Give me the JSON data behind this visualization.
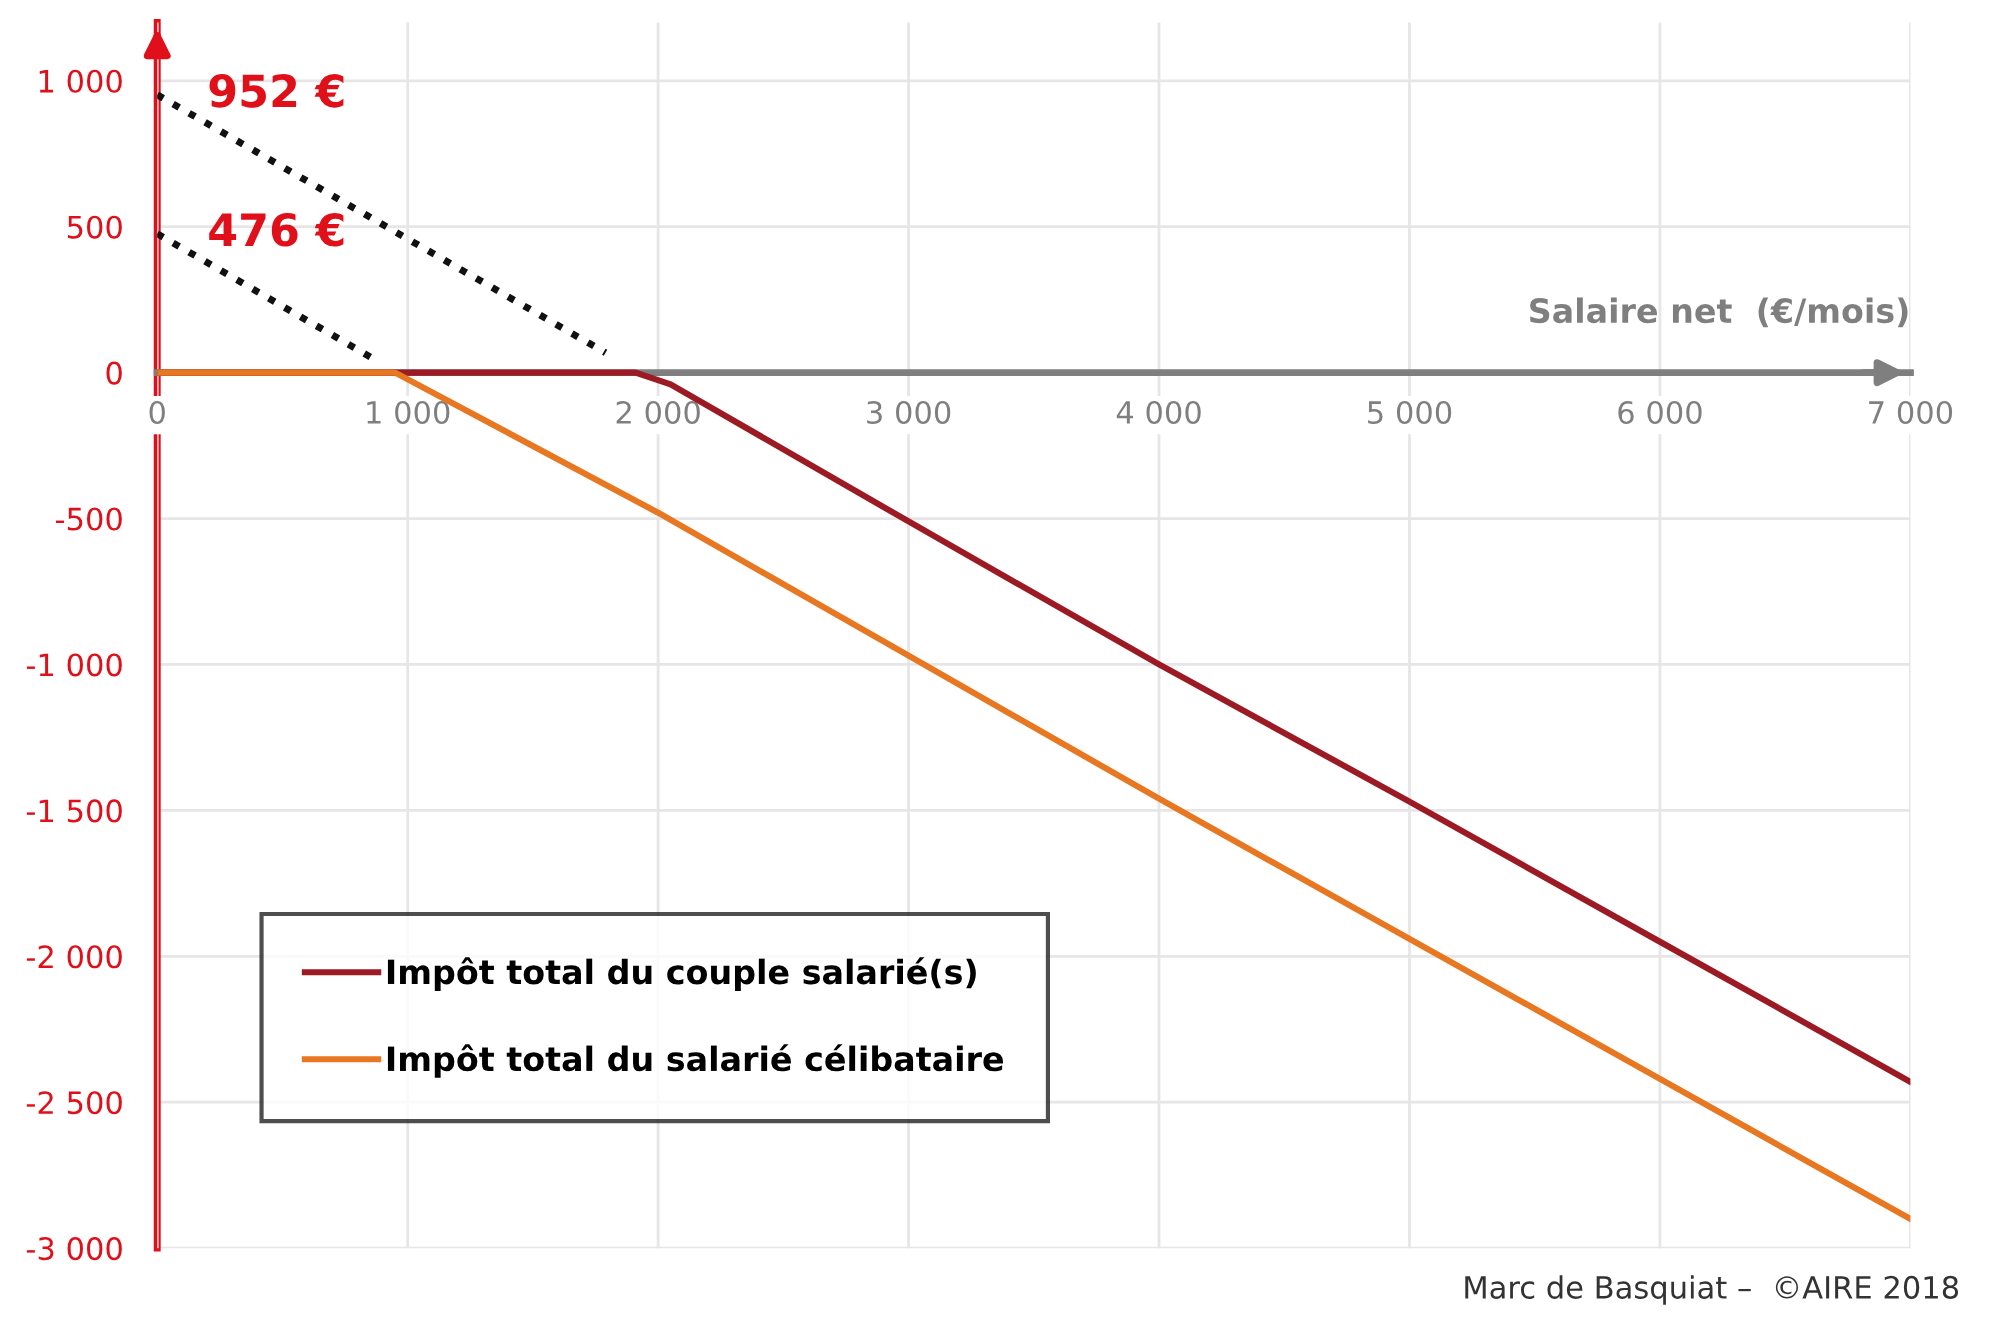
{
  "chart_data": {
    "type": "line",
    "xlabel": "Salaire net  (€/mois)",
    "xlim": [
      0,
      7000
    ],
    "ylim": [
      -3000,
      1200
    ],
    "xticks": [
      0,
      {
        "value": 1000,
        "label": "1 000"
      },
      {
        "value": 2000,
        "label": "2 000"
      },
      {
        "value": 3000,
        "label": "3 000"
      },
      {
        "value": 4000,
        "label": "4 000"
      },
      {
        "value": 5000,
        "label": "5 000"
      },
      {
        "value": 6000,
        "label": "6 000"
      },
      {
        "value": 7000,
        "label": "7 000"
      }
    ],
    "yticks": [
      {
        "value": 1000,
        "label": "1 000"
      },
      500,
      0,
      {
        "value": -500,
        "label": "-500"
      },
      {
        "value": -1000,
        "label": "-1 000"
      },
      {
        "value": -1500,
        "label": "-1 500"
      },
      {
        "value": -2000,
        "label": "-2 000"
      },
      {
        "value": -2500,
        "label": "-2 500"
      },
      {
        "value": -3000,
        "label": "-3 000"
      }
    ],
    "grid": true,
    "legend": "bottom left",
    "series": [
      {
        "name": "Impôt total du couple salarié(s)",
        "color": "#9c1a24",
        "x": [
          0,
          1910,
          2050,
          3000,
          4000,
          5000,
          6000,
          7000
        ],
        "values": [
          0,
          0,
          -40,
          -510,
          -1000,
          -1470,
          -1950,
          -2430
        ]
      },
      {
        "name": "Impôt total du salarié célibataire",
        "color": "#e87722",
        "x": [
          0,
          950,
          2000,
          3000,
          4000,
          5000,
          6000,
          7000
        ],
        "values": [
          0,
          0,
          -480,
          -970,
          -1460,
          -1940,
          -2420,
          -2900
        ]
      },
      {
        "color": "#111111",
        "line_style": "dotted",
        "x": [
          0,
          1790
        ],
        "values": [
          952,
          68
        ]
      },
      {
        "color": "#111111",
        "line_style": "dotted",
        "x": [
          0,
          890
        ],
        "values": [
          476,
          34
        ]
      }
    ],
    "annotations": [
      {
        "text": "952 €",
        "x": 0,
        "y": 952
      },
      {
        "text": "476 €",
        "x": 0,
        "y": 476
      },
      "Marc de Basquiat –  ©AIRE 2018"
    ]
  }
}
